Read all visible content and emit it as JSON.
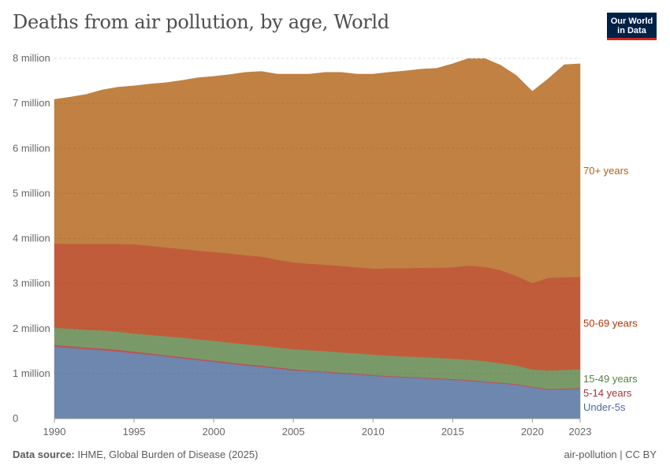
{
  "title": "Deaths from air pollution, by age, World",
  "logo": {
    "line1": "Our World",
    "line2": "in Data"
  },
  "footer": {
    "source_label": "Data source:",
    "source": "IHME, Global Burden of Disease (2025)",
    "license": "air-pollution | CC BY"
  },
  "chart_data": {
    "type": "area",
    "stacked": true,
    "title": "Deaths from air pollution, by age, World",
    "xlim": [
      1990,
      2023
    ],
    "ylim": [
      0,
      8000000
    ],
    "grid": "horizontal dashed",
    "legend": "right, inline labels",
    "x_ticks": [
      "1990",
      "1995",
      "2000",
      "2005",
      "2010",
      "2015",
      "2020",
      "2023"
    ],
    "y_ticks": [
      "0",
      "1 million",
      "2 million",
      "3 million",
      "4 million",
      "5 million",
      "6 million",
      "7 million",
      "8 million"
    ],
    "x": [
      1990,
      1991,
      1992,
      1993,
      1994,
      1995,
      1996,
      1997,
      1998,
      1999,
      2000,
      2001,
      2002,
      2003,
      2004,
      2005,
      2006,
      2007,
      2008,
      2009,
      2010,
      2011,
      2012,
      2013,
      2014,
      2015,
      2016,
      2017,
      2018,
      2019,
      2020,
      2021,
      2022,
      2023
    ],
    "unit": "million deaths",
    "series": [
      {
        "name": "Under-5s",
        "color": "#6d87ae",
        "label_color": "#4c6a9c",
        "values": [
          1.6,
          1.57,
          1.54,
          1.52,
          1.49,
          1.45,
          1.42,
          1.38,
          1.34,
          1.3,
          1.26,
          1.22,
          1.18,
          1.15,
          1.11,
          1.07,
          1.05,
          1.03,
          1.0,
          0.98,
          0.95,
          0.93,
          0.91,
          0.9,
          0.88,
          0.86,
          0.84,
          0.81,
          0.78,
          0.75,
          0.69,
          0.64,
          0.65,
          0.66
        ]
      },
      {
        "name": "5-14 years",
        "color": "#b9545a",
        "label_color": "#a2343c",
        "values": [
          0.04,
          0.04,
          0.04,
          0.04,
          0.04,
          0.04,
          0.03,
          0.03,
          0.03,
          0.03,
          0.03,
          0.03,
          0.03,
          0.03,
          0.03,
          0.03,
          0.02,
          0.02,
          0.02,
          0.02,
          0.02,
          0.02,
          0.02,
          0.02,
          0.02,
          0.02,
          0.02,
          0.02,
          0.02,
          0.02,
          0.02,
          0.02,
          0.02,
          0.02
        ]
      },
      {
        "name": "15-49 years",
        "color": "#799a68",
        "label_color": "#578145",
        "values": [
          0.38,
          0.39,
          0.39,
          0.4,
          0.4,
          0.4,
          0.41,
          0.42,
          0.43,
          0.43,
          0.44,
          0.44,
          0.44,
          0.44,
          0.44,
          0.44,
          0.45,
          0.45,
          0.45,
          0.45,
          0.45,
          0.45,
          0.45,
          0.45,
          0.45,
          0.45,
          0.45,
          0.45,
          0.43,
          0.41,
          0.38,
          0.41,
          0.41,
          0.42
        ]
      },
      {
        "name": "50-69 years",
        "color": "#c15c3a",
        "label_color": "#b13507",
        "values": [
          1.87,
          1.88,
          1.91,
          1.92,
          1.95,
          1.98,
          1.98,
          1.97,
          1.97,
          1.97,
          1.97,
          1.98,
          1.98,
          1.98,
          1.95,
          1.93,
          1.92,
          1.92,
          1.92,
          1.91,
          1.91,
          1.94,
          1.96,
          1.98,
          2.0,
          2.03,
          2.09,
          2.09,
          2.07,
          1.99,
          1.92,
          2.06,
          2.06,
          2.05
        ]
      },
      {
        "name": "70+ years",
        "color": "#c08143",
        "label_color": "#b16214",
        "values": [
          3.2,
          3.26,
          3.32,
          3.42,
          3.48,
          3.52,
          3.59,
          3.66,
          3.74,
          3.84,
          3.9,
          3.97,
          4.06,
          4.11,
          4.12,
          4.18,
          4.21,
          4.27,
          4.3,
          4.29,
          4.32,
          4.35,
          4.38,
          4.41,
          4.43,
          4.52,
          4.6,
          4.63,
          4.55,
          4.45,
          4.26,
          4.42,
          4.72,
          4.73
        ]
      }
    ]
  }
}
